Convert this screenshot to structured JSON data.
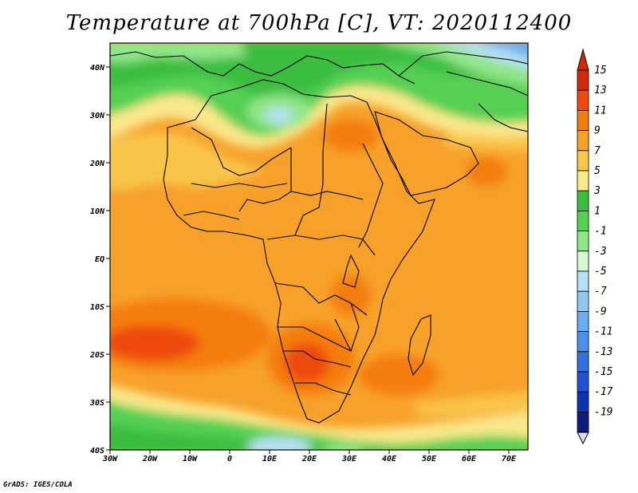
{
  "title": "Temperature at 700hPa [C], VT: 2020112400",
  "credit": "GrADS: IGES/COLA",
  "map": {
    "lon_labels": [
      "30W",
      "20W",
      "10W",
      "0",
      "10E",
      "20E",
      "30E",
      "40E",
      "50E",
      "60E",
      "70E"
    ],
    "lat_labels": [
      "40N",
      "30N",
      "20N",
      "10N",
      "EQ",
      "10S",
      "20S",
      "30S",
      "40S"
    ]
  },
  "colorbar": {
    "labels": [
      "15",
      "13",
      "11",
      "9",
      "7",
      "5",
      "3",
      "1",
      "-1",
      "-3",
      "-5",
      "-7",
      "-9",
      "-11",
      "-13",
      "-15",
      "-17",
      "-19"
    ],
    "colors": [
      "#d3280c",
      "#ef4a0f",
      "#f47d0f",
      "#f7a12a",
      "#f9c54a",
      "#fae88c",
      "#3bbd41",
      "#55d053",
      "#92e68a",
      "#d9f7d3",
      "#b8e0f5",
      "#8fc9f2",
      "#6aaeef",
      "#4d90ea",
      "#356fe0",
      "#2052d1",
      "#0f33b0",
      "#0d1c78"
    ],
    "top_arrow_color": "#d3280c",
    "bottom_arrow_color": "#dcdcf5"
  }
}
